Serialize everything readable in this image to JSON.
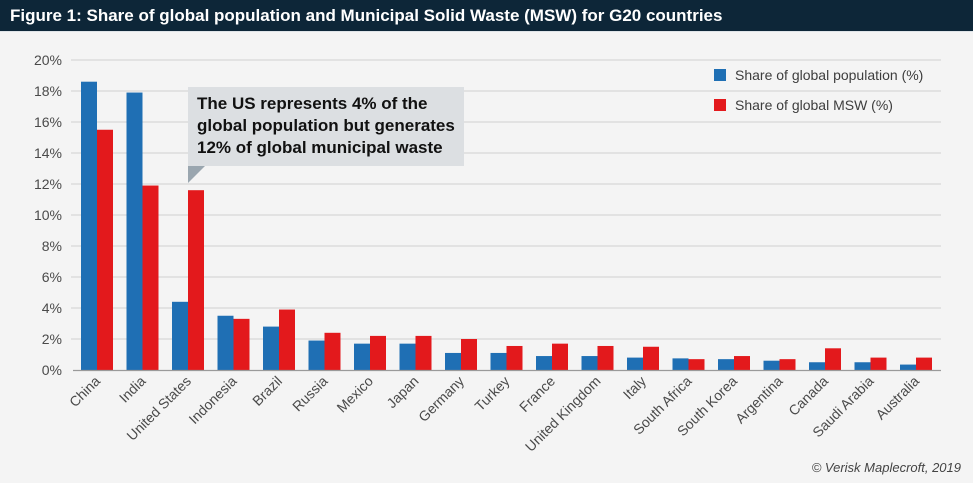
{
  "header": {
    "title": "Figure 1: Share of global population and Municipal Solid Waste (MSW) for G20 countries"
  },
  "annotation": {
    "lines": [
      "The US represents 4% of the",
      "global population but generates",
      "12% of global municipal waste"
    ]
  },
  "credit": "© Verisk Maplecroft, 2019",
  "colors": {
    "population": "#1f6fb4",
    "msw": "#e3191c",
    "title_bg": "#0d2638",
    "background": "#f4f4f4",
    "grid": "#d6d6d6"
  },
  "chart_data": {
    "type": "bar",
    "title": "Figure 1: Share of global population and Municipal Solid Waste (MSW) for G20 countries",
    "xlabel": "",
    "ylabel": "",
    "ylim": [
      0,
      20
    ],
    "yticks": [
      0,
      2,
      4,
      6,
      8,
      10,
      12,
      14,
      16,
      18,
      20
    ],
    "ytick_labels": [
      "0%",
      "2%",
      "4%",
      "6%",
      "8%",
      "10%",
      "12%",
      "14%",
      "16%",
      "18%",
      "20%"
    ],
    "grid": true,
    "legend_position": "top-right",
    "categories": [
      "China",
      "India",
      "United States",
      "Indonesia",
      "Brazil",
      "Russia",
      "Mexico",
      "Japan",
      "Germany",
      "Turkey",
      "France",
      "United Kingdom",
      "Italy",
      "South Africa",
      "South Korea",
      "Argentina",
      "Canada",
      "Saudi Arabia",
      "Australia"
    ],
    "series": [
      {
        "name": "Share of global population (%)",
        "color": "#1f6fb4",
        "values": [
          18.6,
          17.9,
          4.4,
          3.5,
          2.8,
          1.9,
          1.7,
          1.7,
          1.1,
          1.1,
          0.9,
          0.9,
          0.8,
          0.75,
          0.7,
          0.6,
          0.5,
          0.5,
          0.35
        ]
      },
      {
        "name": "Share of global MSW (%)",
        "color": "#e3191c",
        "values": [
          15.5,
          11.9,
          11.6,
          3.3,
          3.9,
          2.4,
          2.2,
          2.2,
          2.0,
          1.55,
          1.7,
          1.55,
          1.5,
          0.7,
          0.9,
          0.7,
          1.4,
          0.8,
          0.8
        ]
      }
    ]
  }
}
